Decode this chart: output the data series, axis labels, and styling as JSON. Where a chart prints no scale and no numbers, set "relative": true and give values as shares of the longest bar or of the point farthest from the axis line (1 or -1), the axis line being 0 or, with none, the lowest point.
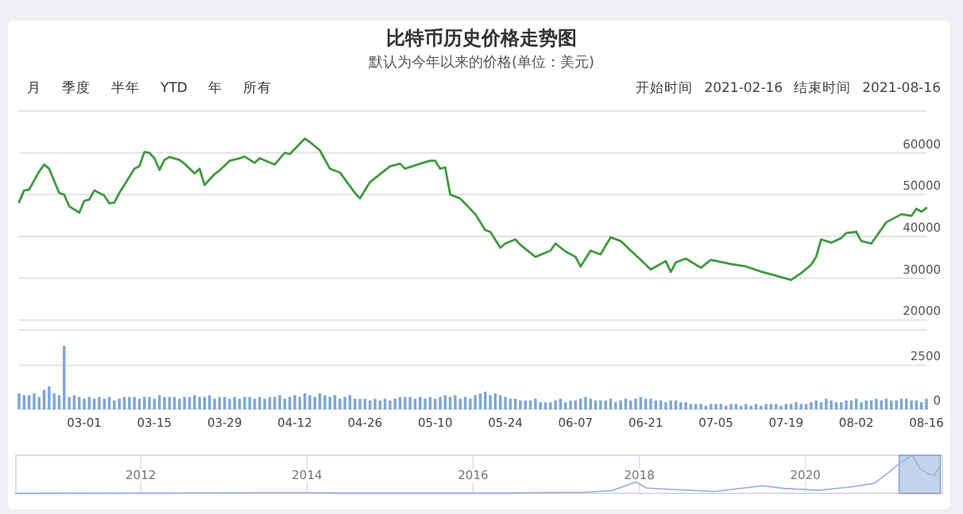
{
  "chart_data": [
    {
      "type": "line",
      "title": "比特币历史价格走势图",
      "subtitle": "默认为今年以来的价格(单位：美元)",
      "annotations": [
        "月",
        "季度",
        "半年",
        "YTD",
        "年",
        "所有",
        "开始时间",
        "2021-02-16",
        "结束时间",
        "2021-08-16"
      ],
      "xlim": [
        "2021-02-16",
        "2021-08-16"
      ],
      "ylim": [
        20000,
        70000
      ],
      "yticks": [
        20000,
        30000,
        40000,
        50000,
        60000
      ],
      "grid": "y",
      "tick_labels": "y",
      "series": [
        {
          "color": "#3e9a3e",
          "x": [
            "2021-02-16",
            "2021-02-17",
            "2021-02-18",
            "2021-02-20",
            "2021-02-21",
            "2021-02-22",
            "2021-02-24",
            "2021-02-25",
            "2021-02-26",
            "2021-02-28",
            "2021-03-01",
            "2021-03-02",
            "2021-03-03",
            "2021-03-05",
            "2021-03-06",
            "2021-03-07",
            "2021-03-08",
            "2021-03-09",
            "2021-03-11",
            "2021-03-12",
            "2021-03-13",
            "2021-03-14",
            "2021-03-15",
            "2021-03-16",
            "2021-03-17",
            "2021-03-18",
            "2021-03-20",
            "2021-03-21",
            "2021-03-23",
            "2021-03-24",
            "2021-03-25",
            "2021-03-27",
            "2021-03-28",
            "2021-03-30",
            "2021-04-01",
            "2021-04-02",
            "2021-04-04",
            "2021-04-05",
            "2021-04-08",
            "2021-04-10",
            "2021-04-11",
            "2021-04-14",
            "2021-04-15",
            "2021-04-17",
            "2021-04-19",
            "2021-04-21",
            "2021-04-24",
            "2021-04-25",
            "2021-04-27",
            "2021-04-29",
            "2021-05-01",
            "2021-05-03",
            "2021-05-04",
            "2021-05-07",
            "2021-05-09",
            "2021-05-10",
            "2021-05-11",
            "2021-05-12",
            "2021-05-13",
            "2021-05-15",
            "2021-05-18",
            "2021-05-20",
            "2021-05-21",
            "2021-05-23",
            "2021-05-24",
            "2021-05-26",
            "2021-05-27",
            "2021-05-30",
            "2021-06-02",
            "2021-06-03",
            "2021-06-05",
            "2021-06-07",
            "2021-06-08",
            "2021-06-10",
            "2021-06-12",
            "2021-06-14",
            "2021-06-16",
            "2021-06-19",
            "2021-06-20",
            "2021-06-22",
            "2021-06-25",
            "2021-06-26",
            "2021-06-27",
            "2021-06-29",
            "2021-07-02",
            "2021-07-04",
            "2021-07-08",
            "2021-07-11",
            "2021-07-14",
            "2021-07-17",
            "2021-07-20",
            "2021-07-22",
            "2021-07-24",
            "2021-07-25",
            "2021-07-26",
            "2021-07-28",
            "2021-07-30",
            "2021-07-31",
            "2021-08-02",
            "2021-08-03",
            "2021-08-05",
            "2021-08-08",
            "2021-08-11",
            "2021-08-13",
            "2021-08-14",
            "2021-08-15",
            "2021-08-16"
          ],
          "values": [
            48200,
            51000,
            51200,
            55500,
            57200,
            56200,
            50400,
            50000,
            47200,
            45700,
            48500,
            48800,
            51000,
            49800,
            47900,
            48100,
            50400,
            52300,
            56200,
            56800,
            60200,
            60000,
            58700,
            55900,
            58300,
            59000,
            58300,
            57400,
            55100,
            56200,
            52300,
            54900,
            55800,
            58100,
            58700,
            59100,
            57600,
            58700,
            57200,
            60000,
            59700,
            63400,
            62600,
            60600,
            56200,
            55300,
            50400,
            49100,
            53000,
            54900,
            56800,
            57400,
            56200,
            57400,
            58100,
            58100,
            56200,
            56500,
            50000,
            49100,
            45300,
            41500,
            41100,
            37300,
            38300,
            39300,
            38000,
            35100,
            36600,
            38300,
            36400,
            35100,
            32800,
            36600,
            35700,
            39800,
            38900,
            35500,
            34400,
            32100,
            34100,
            31500,
            33800,
            34700,
            32500,
            34400,
            33400,
            32800,
            31600,
            30600,
            29600,
            31200,
            33200,
            35100,
            39300,
            38500,
            39600,
            40800,
            41100,
            38900,
            38300,
            43400,
            45300,
            44900,
            46600,
            45900,
            46800
          ]
        }
      ]
    },
    {
      "type": "bar",
      "xlim": [
        "2021-02-16",
        "2021-08-16"
      ],
      "ylim": [
        0,
        4500
      ],
      "yticks": [
        0,
        2500
      ],
      "grid": "y",
      "xticks": [
        {
          "value": "2021-03-01",
          "label": "03-01"
        },
        {
          "value": "2021-03-15",
          "label": "03-15"
        },
        {
          "value": "2021-03-29",
          "label": "03-29"
        },
        {
          "value": "2021-04-12",
          "label": "04-12"
        },
        {
          "value": "2021-04-26",
          "label": "04-26"
        },
        {
          "value": "2021-05-10",
          "label": "05-10"
        },
        {
          "value": "2021-05-24",
          "label": "05-24"
        },
        {
          "value": "2021-06-07",
          "label": "06-07"
        },
        {
          "value": "2021-06-21",
          "label": "06-21"
        },
        {
          "value": "2021-07-05",
          "label": "07-05"
        },
        {
          "value": "2021-07-19",
          "label": "07-19"
        },
        {
          "value": "2021-08-02",
          "label": "08-02"
        },
        {
          "value": "2021-08-16",
          "label": "08-16"
        }
      ],
      "series": [
        {
          "color": "#7ba7d4",
          "x": [
            "2021-02-16",
            "2021-02-17",
            "2021-02-18",
            "2021-02-19",
            "2021-02-20",
            "2021-02-21",
            "2021-02-22",
            "2021-02-23",
            "2021-02-24",
            "2021-02-25",
            "2021-02-26",
            "2021-02-27",
            "2021-02-28",
            "2021-03-01",
            "2021-03-02",
            "2021-03-03",
            "2021-03-04",
            "2021-03-05",
            "2021-03-06",
            "2021-03-07",
            "2021-03-08",
            "2021-03-09",
            "2021-03-10",
            "2021-03-11",
            "2021-03-12",
            "2021-03-13",
            "2021-03-14",
            "2021-03-15",
            "2021-03-16",
            "2021-03-17",
            "2021-03-18",
            "2021-03-19",
            "2021-03-20",
            "2021-03-21",
            "2021-03-22",
            "2021-03-23",
            "2021-03-24",
            "2021-03-25",
            "2021-03-26",
            "2021-03-27",
            "2021-03-28",
            "2021-03-29",
            "2021-03-30",
            "2021-03-31",
            "2021-04-01",
            "2021-04-02",
            "2021-04-03",
            "2021-04-04",
            "2021-04-05",
            "2021-04-06",
            "2021-04-07",
            "2021-04-08",
            "2021-04-09",
            "2021-04-10",
            "2021-04-11",
            "2021-04-12",
            "2021-04-13",
            "2021-04-14",
            "2021-04-15",
            "2021-04-16",
            "2021-04-17",
            "2021-04-18",
            "2021-04-19",
            "2021-04-20",
            "2021-04-21",
            "2021-04-22",
            "2021-04-23",
            "2021-04-24",
            "2021-04-25",
            "2021-04-26",
            "2021-04-27",
            "2021-04-28",
            "2021-04-29",
            "2021-04-30",
            "2021-05-01",
            "2021-05-02",
            "2021-05-03",
            "2021-05-04",
            "2021-05-05",
            "2021-05-06",
            "2021-05-07",
            "2021-05-08",
            "2021-05-09",
            "2021-05-10",
            "2021-05-11",
            "2021-05-12",
            "2021-05-13",
            "2021-05-14",
            "2021-05-15",
            "2021-05-16",
            "2021-05-17",
            "2021-05-18",
            "2021-05-19",
            "2021-05-20",
            "2021-05-21",
            "2021-05-22",
            "2021-05-23",
            "2021-05-24",
            "2021-05-25",
            "2021-05-26",
            "2021-05-27",
            "2021-05-28",
            "2021-05-29",
            "2021-05-30",
            "2021-05-31",
            "2021-06-01",
            "2021-06-02",
            "2021-06-03",
            "2021-06-04",
            "2021-06-05",
            "2021-06-06",
            "2021-06-07",
            "2021-06-08",
            "2021-06-09",
            "2021-06-10",
            "2021-06-11",
            "2021-06-12",
            "2021-06-13",
            "2021-06-14",
            "2021-06-15",
            "2021-06-16",
            "2021-06-17",
            "2021-06-18",
            "2021-06-19",
            "2021-06-20",
            "2021-06-21",
            "2021-06-22",
            "2021-06-23",
            "2021-06-24",
            "2021-06-25",
            "2021-06-26",
            "2021-06-27",
            "2021-06-28",
            "2021-06-29",
            "2021-06-30",
            "2021-07-01",
            "2021-07-02",
            "2021-07-03",
            "2021-07-04",
            "2021-07-05",
            "2021-07-06",
            "2021-07-07",
            "2021-07-08",
            "2021-07-09",
            "2021-07-10",
            "2021-07-11",
            "2021-07-12",
            "2021-07-13",
            "2021-07-14",
            "2021-07-15",
            "2021-07-16",
            "2021-07-17",
            "2021-07-18",
            "2021-07-19",
            "2021-07-20",
            "2021-07-21",
            "2021-07-22",
            "2021-07-23",
            "2021-07-24",
            "2021-07-25",
            "2021-07-26",
            "2021-07-27",
            "2021-07-28",
            "2021-07-29",
            "2021-07-30",
            "2021-07-31",
            "2021-08-01",
            "2021-08-02",
            "2021-08-03",
            "2021-08-04",
            "2021-08-05",
            "2021-08-06",
            "2021-08-07",
            "2021-08-08",
            "2021-08-09",
            "2021-08-10",
            "2021-08-11",
            "2021-08-12",
            "2021-08-13",
            "2021-08-14",
            "2021-08-15",
            "2021-08-16"
          ],
          "values": [
            900,
            800,
            800,
            900,
            700,
            1100,
            1300,
            900,
            800,
            3600,
            700,
            800,
            700,
            600,
            700,
            600,
            700,
            600,
            700,
            500,
            600,
            700,
            700,
            700,
            600,
            700,
            700,
            600,
            800,
            700,
            700,
            700,
            600,
            700,
            700,
            800,
            700,
            700,
            800,
            600,
            700,
            700,
            600,
            700,
            600,
            700,
            700,
            600,
            700,
            600,
            700,
            700,
            800,
            600,
            700,
            800,
            700,
            900,
            800,
            700,
            900,
            800,
            700,
            800,
            600,
            700,
            800,
            600,
            600,
            600,
            500,
            600,
            500,
            600,
            500,
            600,
            700,
            700,
            700,
            600,
            700,
            600,
            700,
            600,
            700,
            800,
            700,
            800,
            600,
            700,
            600,
            800,
            900,
            1000,
            800,
            900,
            800,
            700,
            600,
            600,
            500,
            500,
            500,
            600,
            400,
            400,
            400,
            500,
            600,
            400,
            500,
            500,
            600,
            700,
            600,
            500,
            500,
            500,
            600,
            400,
            500,
            600,
            500,
            600,
            700,
            600,
            600,
            500,
            500,
            400,
            500,
            500,
            400,
            400,
            300,
            300,
            300,
            200,
            300,
            300,
            300,
            200,
            300,
            300,
            200,
            300,
            200,
            300,
            200,
            300,
            300,
            300,
            200,
            300,
            300,
            400,
            300,
            300,
            400,
            500,
            400,
            600,
            500,
            400,
            400,
            500,
            500,
            600,
            400,
            500,
            500,
            600,
            500,
            600,
            500,
            500,
            600,
            600,
            500,
            500,
            400,
            600
          ]
        }
      ]
    },
    {
      "type": "line",
      "relative": true,
      "grid": "x",
      "xlim": [
        "2010-07",
        "2021-08-25"
      ],
      "xticks": [
        {
          "value": "2012",
          "label": "2012"
        },
        {
          "value": "2014",
          "label": "2014"
        },
        {
          "value": "2016",
          "label": "2016"
        },
        {
          "value": "2018",
          "label": "2018"
        },
        {
          "value": "2020",
          "label": "2020"
        }
      ],
      "bands": [
        {
          "axis": "x",
          "from": "2021-02-16",
          "to": "2021-08-16",
          "color": "#b4c8e6"
        }
      ],
      "series": [
        {
          "color": "#9bb8dc",
          "x": [
            "2010-07",
            "2013-11",
            "2014-06",
            "2016-06",
            "2017-05",
            "2017-09",
            "2017-12-17",
            "2018-02",
            "2018-06",
            "2018-12",
            "2019-06-26",
            "2019-10",
            "2020-03",
            "2020-08",
            "2020-11",
            "2021-01",
            "2021-02-20",
            "2021-04-14",
            "2021-05-20",
            "2021-06-22",
            "2021-07-20",
            "2021-08-16"
          ],
          "values": [
            0,
            0.02,
            0.01,
            0.01,
            0.03,
            0.07,
            0.3,
            0.14,
            0.1,
            0.05,
            0.2,
            0.13,
            0.08,
            0.18,
            0.27,
            0.55,
            0.8,
            1,
            0.65,
            0.52,
            0.47,
            0.74
          ]
        }
      ]
    }
  ]
}
